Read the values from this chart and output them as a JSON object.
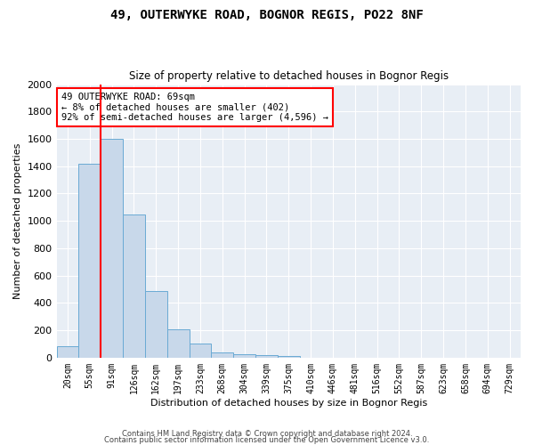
{
  "title1": "49, OUTERWYKE ROAD, BOGNOR REGIS, PO22 8NF",
  "title2": "Size of property relative to detached houses in Bognor Regis",
  "xlabel": "Distribution of detached houses by size in Bognor Regis",
  "ylabel": "Number of detached properties",
  "bar_color": "#c8d8ea",
  "bar_edge_color": "#6aaad4",
  "background_color": "#e8eef5",
  "grid_color": "#ffffff",
  "fig_background": "#ffffff",
  "categories": [
    "20sqm",
    "55sqm",
    "91sqm",
    "126sqm",
    "162sqm",
    "197sqm",
    "233sqm",
    "268sqm",
    "304sqm",
    "339sqm",
    "375sqm",
    "410sqm",
    "446sqm",
    "481sqm",
    "516sqm",
    "552sqm",
    "587sqm",
    "623sqm",
    "658sqm",
    "694sqm",
    "729sqm"
  ],
  "values": [
    85,
    1420,
    1600,
    1045,
    490,
    205,
    105,
    40,
    25,
    20,
    15,
    0,
    0,
    0,
    0,
    0,
    0,
    0,
    0,
    0,
    0
  ],
  "red_line_x": 1.5,
  "ylim": [
    0,
    2000
  ],
  "yticks": [
    0,
    200,
    400,
    600,
    800,
    1000,
    1200,
    1400,
    1600,
    1800,
    2000
  ],
  "annotation_text": "49 OUTERWYKE ROAD: 69sqm\n← 8% of detached houses are smaller (402)\n92% of semi-detached houses are larger (4,596) →",
  "footnote1": "Contains HM Land Registry data © Crown copyright and database right 2024.",
  "footnote2": "Contains public sector information licensed under the Open Government Licence v3.0."
}
